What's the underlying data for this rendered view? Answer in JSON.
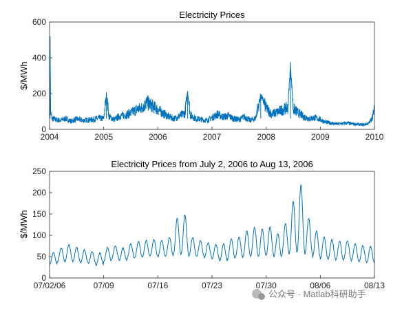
{
  "watermark": "公众号 · Matlab科研助手",
  "colors": {
    "line": "#0072BD",
    "axes": "#262626"
  },
  "chart_data": [
    {
      "type": "line",
      "title": "Electricity Prices",
      "ylabel": "$/MWh",
      "xlabel": "",
      "xlim": [
        2004,
        2010
      ],
      "ylim": [
        0,
        600
      ],
      "xticks": [
        "2004",
        "2005",
        "2006",
        "2007",
        "2008",
        "2009",
        "2010"
      ],
      "yticks": [
        "0",
        "200",
        "400",
        "600"
      ],
      "grid": false,
      "series": [
        {
          "x": [
            2004.0,
            2004.01,
            2004.02,
            2004.05,
            2004.1,
            2004.2,
            2004.3,
            2004.4,
            2004.5,
            2004.6,
            2004.7,
            2004.8,
            2004.9,
            2005.0,
            2005.05,
            2005.1,
            2005.2,
            2005.3,
            2005.4,
            2005.5,
            2005.6,
            2005.7,
            2005.8,
            2005.9,
            2006.0,
            2006.1,
            2006.2,
            2006.3,
            2006.4,
            2006.5,
            2006.55,
            2006.6,
            2006.7,
            2006.8,
            2006.9,
            2007.0,
            2007.1,
            2007.2,
            2007.3,
            2007.4,
            2007.5,
            2007.6,
            2007.7,
            2007.8,
            2007.9,
            2008.0,
            2008.1,
            2008.2,
            2008.3,
            2008.4,
            2008.45,
            2008.5,
            2008.6,
            2008.7,
            2008.8,
            2008.9,
            2009.0,
            2009.1,
            2009.2,
            2009.3,
            2009.4,
            2009.5,
            2009.6,
            2009.7,
            2009.8,
            2009.9,
            2009.95,
            2010.0
          ],
          "values": [
            110,
            520,
            90,
            60,
            55,
            50,
            60,
            45,
            58,
            50,
            52,
            55,
            62,
            60,
            190,
            70,
            55,
            75,
            80,
            90,
            110,
            120,
            150,
            130,
            110,
            90,
            70,
            60,
            75,
            90,
            215,
            80,
            60,
            55,
            50,
            65,
            85,
            70,
            75,
            60,
            55,
            70,
            50,
            60,
            190,
            120,
            85,
            95,
            110,
            120,
            360,
            115,
            90,
            70,
            60,
            65,
            55,
            40,
            35,
            30,
            32,
            35,
            30,
            28,
            25,
            35,
            60,
            110
          ]
        }
      ]
    },
    {
      "type": "line",
      "title": "Electricity Prices from July 2, 2006 to Aug 13, 2006",
      "ylabel": "$/MWh",
      "xlabel": "",
      "xlim": [
        "2006-07-02",
        "2006-08-13"
      ],
      "ylim": [
        0,
        250
      ],
      "xticks": [
        "07/02/06",
        "07/09",
        "07/16",
        "07/23",
        "07/30",
        "08/06",
        "08/13"
      ],
      "yticks": [
        "0",
        "50",
        "100",
        "150",
        "200",
        "250"
      ],
      "grid": false,
      "series": [
        {
          "day_peaks": [
            60,
            70,
            78,
            72,
            66,
            62,
            58,
            72,
            75,
            70,
            80,
            85,
            88,
            90,
            88,
            95,
            140,
            148,
            95,
            88,
            82,
            78,
            80,
            92,
            96,
            110,
            118,
            115,
            120,
            105,
            128,
            180,
            218,
            140,
            110,
            95,
            90,
            86,
            88,
            80,
            76,
            74
          ],
          "day_troughs": [
            32,
            38,
            40,
            38,
            36,
            34,
            30,
            40,
            45,
            42,
            46,
            48,
            50,
            52,
            50,
            52,
            55,
            56,
            52,
            50,
            48,
            44,
            40,
            45,
            48,
            50,
            52,
            52,
            54,
            50,
            55,
            60,
            62,
            56,
            50,
            45,
            44,
            42,
            44,
            40,
            38,
            36
          ]
        }
      ]
    }
  ]
}
